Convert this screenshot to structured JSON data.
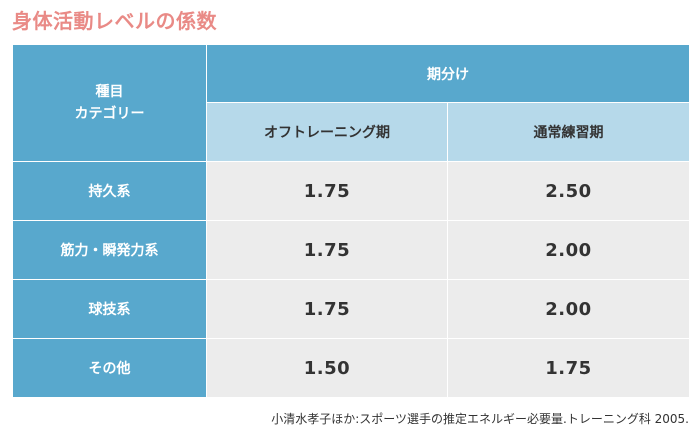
{
  "title": "身体活動レベルの係数",
  "colors": {
    "title": "#e98a86",
    "header_dark": "#58a8cd",
    "header_light": "#b6d9ea",
    "cell_bg": "#ececec",
    "text_dark": "#333333"
  },
  "table": {
    "category_header_line1": "種目",
    "category_header_line2": "カテゴリー",
    "period_header": "期分け",
    "sub_headers": [
      "オフトレーニング期",
      "通常練習期"
    ],
    "rows": [
      {
        "category": "持久系",
        "off": "1.75",
        "regular": "2.50"
      },
      {
        "category": "筋力・瞬発力系",
        "off": "1.75",
        "regular": "2.00"
      },
      {
        "category": "球技系",
        "off": "1.75",
        "regular": "2.00"
      },
      {
        "category": "その他",
        "off": "1.50",
        "regular": "1.75"
      }
    ]
  },
  "source": "小清水孝子ほか:スポーツ選手の推定エネルギー必要量.トレーニング科 2005."
}
